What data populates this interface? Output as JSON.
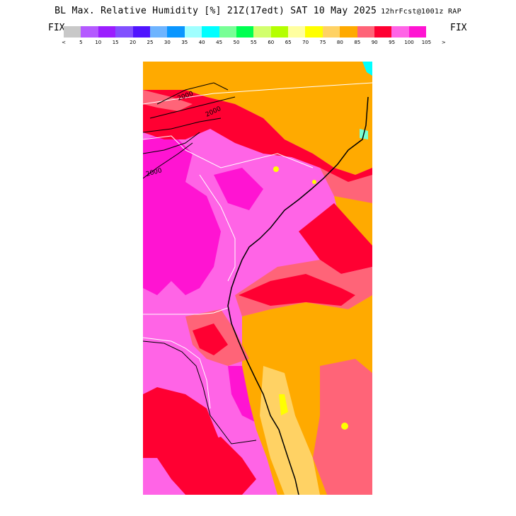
{
  "header": {
    "title": "BL Max. Relative Humidity [%] 21Z(17edt) SAT 10 May 2025",
    "run": "12hrFcst@1001z RAP",
    "fix_left": "FIX",
    "fix_right": "FIX"
  },
  "legend": {
    "bins": [
      {
        "label": "<",
        "color": "#c8c8c8"
      },
      {
        "label": "5",
        "color": "#b45aff"
      },
      {
        "label": "10",
        "color": "#9b1eff"
      },
      {
        "label": "15",
        "color": "#8250ff"
      },
      {
        "label": "20",
        "color": "#5014ff"
      },
      {
        "label": "25",
        "color": "#6eb4ff"
      },
      {
        "label": "30",
        "color": "#0a96ff"
      },
      {
        "label": "35",
        "color": "#a0ffff"
      },
      {
        "label": "40",
        "color": "#00ffff"
      },
      {
        "label": "45",
        "color": "#78ff96"
      },
      {
        "label": "50",
        "color": "#00ff50"
      },
      {
        "label": "55",
        "color": "#d2ff6e"
      },
      {
        "label": "60",
        "color": "#b4ff00"
      },
      {
        "label": "65",
        "color": "#ffffa0"
      },
      {
        "label": "70",
        "color": "#ffff00"
      },
      {
        "label": "75",
        "color": "#ffd264"
      },
      {
        "label": "80",
        "color": "#ffaa00"
      },
      {
        "label": "85",
        "color": "#ff6478"
      },
      {
        "label": "90",
        "color": "#ff0032"
      },
      {
        "label": "95",
        "color": "#ff64e6"
      },
      {
        "label": "100",
        "color": "#ff14d2"
      },
      {
        "label": "105",
        "color": ""
      },
      {
        "label": ">",
        "color": ""
      }
    ]
  },
  "contour_labels": [
    "2000",
    "2000",
    "2000"
  ],
  "colors": {
    "orange": "#ffaa00",
    "salmon": "#ff6478",
    "red": "#ff0032",
    "pink": "#ff64e6",
    "magenta": "#ff14d2",
    "light_orange": "#ffd264",
    "yellow": "#ffff00",
    "cyan": "#00ffff",
    "aqua": "#78ffd2",
    "border_white": "#ffffff",
    "contour_black": "#000000"
  }
}
